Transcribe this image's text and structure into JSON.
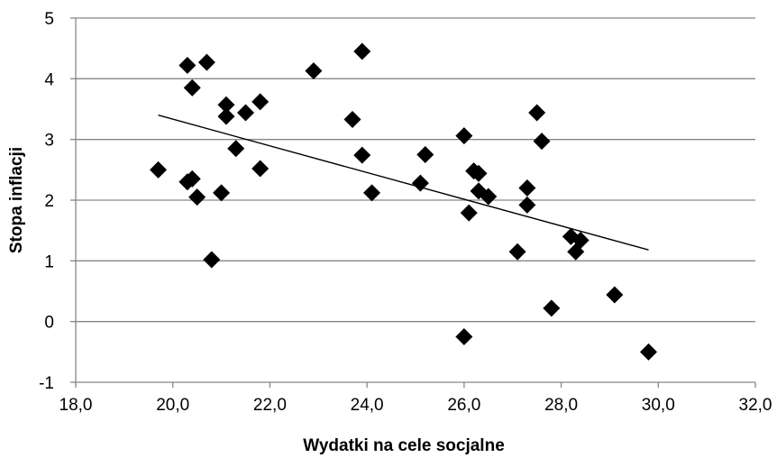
{
  "chart_data": {
    "type": "scatter",
    "xlabel": "Wydatki na cele socjalne",
    "ylabel": "Stopa inflacji",
    "xlim": [
      18,
      32
    ],
    "ylim": [
      -1,
      5
    ],
    "x_ticks": [
      "18,0",
      "20,0",
      "22,0",
      "24,0",
      "26,0",
      "28,0",
      "30,0",
      "32,0"
    ],
    "y_ticks": [
      "-1",
      "0",
      "1",
      "2",
      "3",
      "4",
      "5"
    ],
    "grid": "horizontal",
    "marker": "diamond",
    "marker_color": "#000000",
    "series": [
      {
        "points": [
          [
            19.7,
            2.5
          ],
          [
            20.3,
            4.22
          ],
          [
            20.3,
            2.3
          ],
          [
            20.4,
            3.85
          ],
          [
            20.4,
            2.35
          ],
          [
            20.5,
            2.05
          ],
          [
            20.7,
            4.27
          ],
          [
            20.8,
            1.02
          ],
          [
            21.0,
            2.12
          ],
          [
            21.1,
            3.57
          ],
          [
            21.1,
            3.38
          ],
          [
            21.3,
            2.85
          ],
          [
            21.5,
            3.44
          ],
          [
            21.8,
            3.62
          ],
          [
            21.8,
            2.52
          ],
          [
            22.9,
            4.13
          ],
          [
            23.7,
            3.33
          ],
          [
            23.9,
            4.45
          ],
          [
            23.9,
            2.74
          ],
          [
            24.1,
            2.12
          ],
          [
            25.1,
            2.28
          ],
          [
            25.2,
            2.75
          ],
          [
            26.0,
            3.06
          ],
          [
            26.0,
            -0.25
          ],
          [
            26.1,
            1.79
          ],
          [
            26.2,
            2.48
          ],
          [
            26.3,
            2.44
          ],
          [
            26.3,
            2.15
          ],
          [
            26.5,
            2.06
          ],
          [
            27.1,
            1.15
          ],
          [
            27.3,
            2.2
          ],
          [
            27.3,
            1.92
          ],
          [
            27.5,
            3.44
          ],
          [
            27.6,
            2.97
          ],
          [
            27.8,
            0.22
          ],
          [
            28.2,
            1.4
          ],
          [
            28.3,
            1.15
          ],
          [
            28.4,
            1.34
          ],
          [
            29.1,
            0.44
          ],
          [
            29.8,
            -0.5
          ]
        ]
      }
    ],
    "trendline": {
      "x": [
        19.7,
        29.8
      ],
      "y": [
        3.4,
        1.18
      ],
      "color": "#000000"
    }
  }
}
